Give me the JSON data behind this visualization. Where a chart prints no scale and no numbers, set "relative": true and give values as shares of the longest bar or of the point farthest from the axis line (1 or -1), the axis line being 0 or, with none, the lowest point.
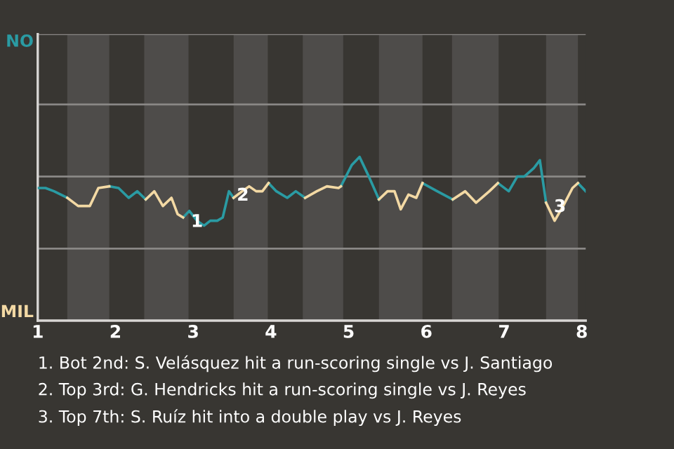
{
  "chart_data": {
    "type": "line",
    "relative": true,
    "xlim": [
      1,
      8.05
    ],
    "xticks": [
      1,
      2,
      3,
      4,
      5,
      6,
      7,
      8
    ],
    "legend": false,
    "marker": "none",
    "line_style": "solid",
    "x": [
      1.0,
      1.1,
      1.21,
      1.38,
      1.52,
      1.67,
      1.78,
      1.92,
      2.04,
      2.17,
      2.28,
      2.39,
      2.5,
      2.61,
      2.72,
      2.8,
      2.87,
      2.95,
      3.05,
      3.14,
      3.22,
      3.31,
      3.38,
      3.46,
      3.52,
      3.63,
      3.72,
      3.81,
      3.89,
      3.97,
      4.07,
      4.21,
      4.32,
      4.44,
      4.59,
      4.72,
      4.87,
      4.9,
      5.04,
      5.14,
      5.26,
      5.39,
      5.5,
      5.59,
      5.67,
      5.77,
      5.87,
      5.95,
      6.14,
      6.34,
      6.5,
      6.64,
      6.81,
      6.92,
      7.06,
      7.17,
      7.26,
      7.38,
      7.46,
      7.54,
      7.65,
      7.76,
      7.88,
      7.95,
      8.05
    ],
    "series": [
      {
        "color": "#2a9ba3",
        "values": [
          0.81,
          0.81,
          0.79,
          0.75,
          null,
          null,
          null,
          0.82,
          0.81,
          0.75,
          0.79,
          0.74,
          null,
          null,
          null,
          null,
          0.63,
          0.67,
          0.61,
          0.58,
          0.61,
          0.61,
          0.63,
          0.79,
          0.75,
          null,
          null,
          null,
          null,
          0.84,
          0.79,
          0.75,
          0.79,
          0.75,
          null,
          null,
          null,
          0.82,
          0.95,
          1,
          0.88,
          0.74,
          null,
          null,
          null,
          null,
          null,
          0.84,
          0.79,
          0.74,
          null,
          null,
          null,
          0.84,
          0.79,
          0.88,
          0.88,
          0.93,
          0.98,
          0.72,
          null,
          null,
          null,
          0.84,
          0.79
        ]
      },
      {
        "color": "#f3d9a4",
        "values": [
          null,
          null,
          null,
          0.75,
          0.7,
          0.7,
          0.81,
          0.82,
          null,
          null,
          null,
          0.74,
          0.79,
          0.7,
          0.75,
          0.65,
          0.63,
          null,
          null,
          null,
          null,
          null,
          null,
          null,
          0.75,
          0.79,
          0.82,
          0.79,
          0.79,
          0.84,
          null,
          null,
          null,
          0.75,
          0.79,
          0.82,
          0.81,
          0.82,
          null,
          null,
          null,
          0.74,
          0.79,
          0.79,
          0.68,
          0.77,
          0.75,
          0.84,
          null,
          0.74,
          0.79,
          0.72,
          0.79,
          0.84,
          null,
          null,
          null,
          null,
          null,
          0.72,
          0.61,
          0.7,
          0.81,
          0.84,
          null
        ]
      }
    ],
    "ref_lines": [
      {
        "axis": "y",
        "value": 0.44,
        "color": "#8a8886"
      },
      {
        "axis": "y",
        "value": 0.88,
        "color": "#8a8886"
      },
      {
        "axis": "y",
        "value": 1.32,
        "color": "#8a8886"
      },
      {
        "axis": "y",
        "value": 1.75,
        "color": "#8a8886"
      }
    ],
    "bands": [
      {
        "axis": "x",
        "from": 1.38,
        "to": 1.92,
        "color": "#4e4c4a"
      },
      {
        "axis": "x",
        "from": 2.37,
        "to": 2.94,
        "color": "#4e4c4a"
      },
      {
        "axis": "x",
        "from": 3.52,
        "to": 3.96,
        "color": "#4e4c4a"
      },
      {
        "axis": "x",
        "from": 4.41,
        "to": 4.93,
        "color": "#4e4c4a"
      },
      {
        "axis": "x",
        "from": 5.39,
        "to": 5.95,
        "color": "#4e4c4a"
      },
      {
        "axis": "x",
        "from": 6.33,
        "to": 6.93,
        "color": "#4e4c4a"
      },
      {
        "axis": "x",
        "from": 7.54,
        "to": 7.95,
        "color": "#4e4c4a"
      }
    ],
    "annotations": [
      "NO",
      "MIL",
      {
        "text": "1",
        "x": 2.87,
        "y": 0.63
      },
      {
        "text": "2",
        "x": 3.46,
        "y": 0.79
      },
      {
        "text": "3",
        "x": 7.54,
        "y": 0.72
      },
      "1. Bot 2nd: S. Velásquez hit a run-scoring single vs J. Santiago",
      "2. Top 3rd: G. Hendricks hit a run-scoring single vs J. Reyes",
      "3. Top 7th: S. Ruíz hit into a double play vs J. Reyes"
    ]
  }
}
